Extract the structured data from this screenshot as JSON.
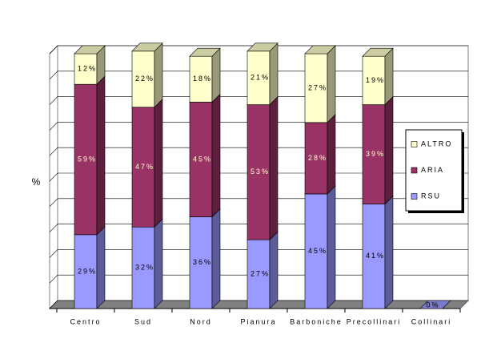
{
  "chart_data": {
    "type": "bar3d_stacked",
    "y_label": "%",
    "categories": [
      "Centro",
      "Sud",
      "Nord",
      "Pianura",
      "Barboniche",
      "Precollinari",
      "Collinari"
    ],
    "series": [
      {
        "name": "RSU",
        "color": "#9999ff",
        "values": [
          29,
          32,
          36,
          27,
          45,
          41,
          0
        ],
        "value_labels": [
          "29%",
          "32%",
          "36%",
          "27%",
          "45%",
          "41%",
          "0%"
        ]
      },
      {
        "name": "ARIA",
        "color": "#993366",
        "values": [
          59,
          47,
          45,
          53,
          28,
          39,
          null
        ],
        "value_labels": [
          "59%",
          "47%",
          "45%",
          "53%",
          "28%",
          "39%",
          null
        ]
      },
      {
        "name": "ALTRO",
        "color": "#ffffcc",
        "values": [
          12,
          22,
          18,
          21,
          27,
          19,
          null
        ],
        "value_labels": [
          "12%",
          "22%",
          "18%",
          "21%",
          "27%",
          "19%",
          null
        ]
      }
    ],
    "ylim": [
      0,
      100
    ],
    "yticks": [
      0,
      10,
      20,
      30,
      40,
      50,
      60,
      70,
      80,
      90,
      100
    ],
    "grid": true
  }
}
